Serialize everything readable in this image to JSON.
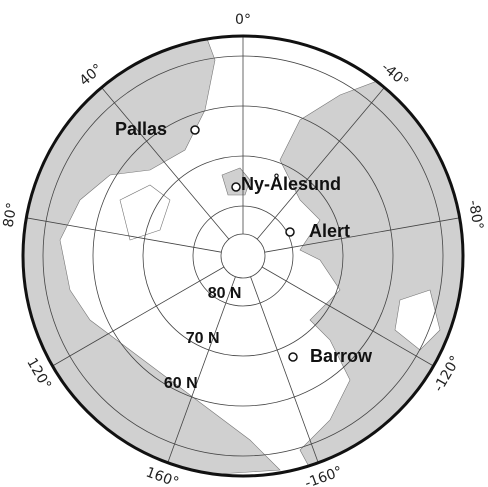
{
  "meridians": [
    {
      "value": 0,
      "label": "0°"
    },
    {
      "value": 40,
      "label": "40°"
    },
    {
      "value": -40,
      "label": "-40°"
    },
    {
      "value": 80,
      "label": "80°"
    },
    {
      "value": -80,
      "label": "-80°"
    },
    {
      "value": 120,
      "label": "120°"
    },
    {
      "value": -120,
      "label": "-120°"
    },
    {
      "value": 160,
      "label": "160°"
    },
    {
      "value": -160,
      "label": "-160°"
    }
  ],
  "parallels": [
    {
      "value": 80,
      "label": "80 N"
    },
    {
      "value": 70,
      "label": "70 N"
    },
    {
      "value": 60,
      "label": "60 N"
    }
  ],
  "stations": [
    "Pallas",
    "Ny-Ålesund",
    "Alert",
    "Barrow"
  ]
}
